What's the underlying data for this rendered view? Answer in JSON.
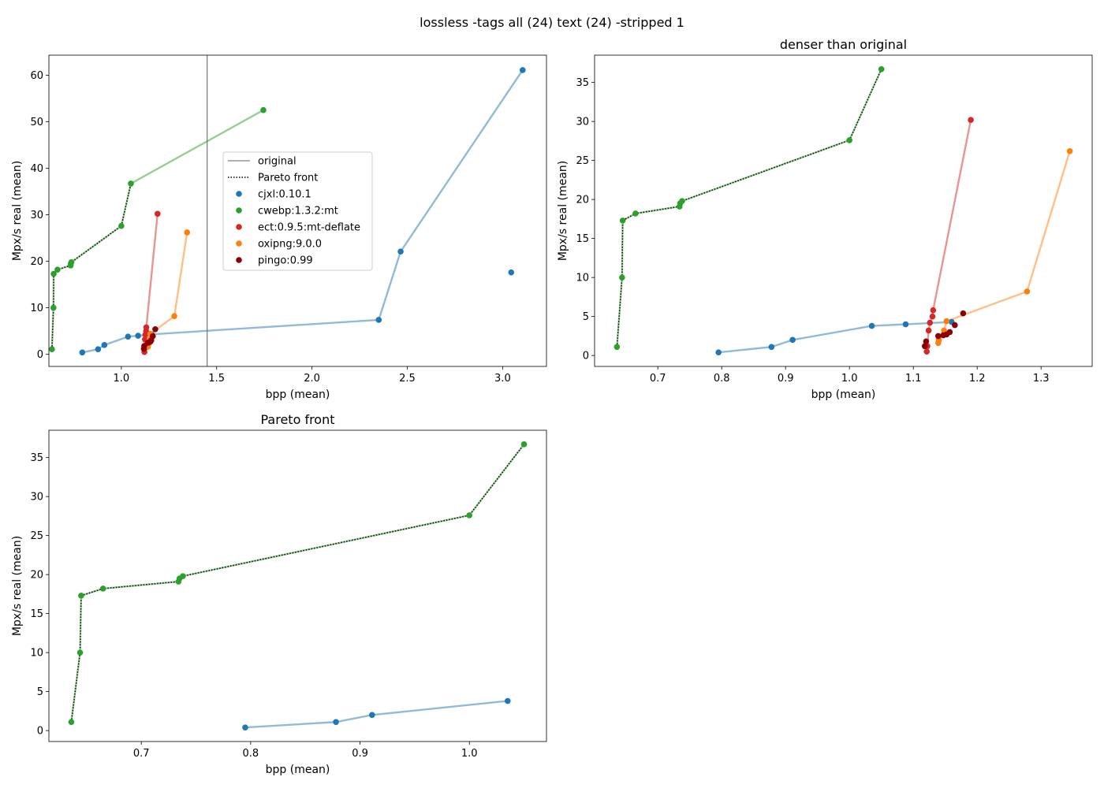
{
  "suptitle": "lossless -tags all (24) text (24) -stripped 1",
  "legend": {
    "original_label": "original",
    "pareto_label": "Pareto front"
  },
  "series_colors": {
    "cjxl:0.10.1": "#1f77b4",
    "cwebp:1.3.2:mt": "#2ca02c",
    "ect:0.9.5:mt-deflate": "#d62728",
    "oxipng:9.0.0": "#ff7f0e",
    "pingo:0.99": "#8b0000"
  },
  "chart_data": [
    {
      "type": "scatter",
      "title": "",
      "xlabel": "bpp (mean)",
      "ylabel": "Mpx/s real (mean)",
      "xlim": [
        0.62,
        3.23
      ],
      "ylim": [
        -2.6,
        64.3
      ],
      "xticks": [
        "1.0",
        "1.5",
        "2.0",
        "2.5",
        "3.0"
      ],
      "yticks": [
        "0",
        "10",
        "20",
        "30",
        "40",
        "50",
        "60"
      ],
      "original_bpp": 1.45,
      "legend_position": "center",
      "series": [
        {
          "name": "cjxl:0.10.1",
          "points": [
            [
              0.795,
              0.4
            ],
            [
              0.878,
              1.1
            ],
            [
              0.911,
              2.0
            ],
            [
              1.035,
              3.8
            ],
            [
              1.088,
              4.0
            ],
            [
              1.16,
              4.3
            ],
            [
              2.35,
              7.4
            ],
            [
              2.465,
              22.1
            ],
            [
              3.105,
              61.1
            ],
            [
              3.045,
              17.6
            ]
          ],
          "line": [
            [
              0.795,
              0.4
            ],
            [
              0.878,
              1.1
            ],
            [
              0.911,
              2.0
            ],
            [
              1.035,
              3.8
            ],
            [
              1.088,
              4.0
            ],
            [
              1.16,
              4.3
            ],
            [
              2.35,
              7.4
            ],
            [
              2.465,
              22.1
            ],
            [
              3.105,
              61.1
            ]
          ]
        },
        {
          "name": "cwebp:1.3.2:mt",
          "points": [
            [
              0.636,
              1.1
            ],
            [
              0.644,
              10.0
            ],
            [
              0.645,
              17.3
            ],
            [
              0.665,
              18.2
            ],
            [
              0.734,
              19.1
            ],
            [
              0.735,
              19.5
            ],
            [
              0.738,
              19.8
            ],
            [
              1.0,
              27.6
            ],
            [
              1.05,
              36.7
            ],
            [
              1.745,
              52.5
            ]
          ],
          "line": [
            [
              0.636,
              1.1
            ],
            [
              0.644,
              10.0
            ],
            [
              0.645,
              17.3
            ],
            [
              0.665,
              18.2
            ],
            [
              0.734,
              19.1
            ],
            [
              0.735,
              19.5
            ],
            [
              0.738,
              19.8
            ],
            [
              1.0,
              27.6
            ],
            [
              1.05,
              36.7
            ],
            [
              1.745,
              52.5
            ]
          ]
        },
        {
          "name": "ect:0.9.5:mt-deflate",
          "points": [
            [
              1.121,
              0.5
            ],
            [
              1.122,
              1.2
            ],
            [
              1.124,
              3.2
            ],
            [
              1.126,
              4.2
            ],
            [
              1.13,
              5.0
            ],
            [
              1.131,
              5.8
            ],
            [
              1.19,
              30.2
            ]
          ],
          "line": [
            [
              1.121,
              0.5
            ],
            [
              1.122,
              1.2
            ],
            [
              1.124,
              3.2
            ],
            [
              1.126,
              4.2
            ],
            [
              1.13,
              5.0
            ],
            [
              1.131,
              5.8
            ],
            [
              1.19,
              30.2
            ]
          ]
        },
        {
          "name": "oxipng:9.0.0",
          "points": [
            [
              1.139,
              1.6
            ],
            [
              1.14,
              2.0
            ],
            [
              1.148,
              3.2
            ],
            [
              1.152,
              4.4
            ],
            [
              1.278,
              8.2
            ],
            [
              1.345,
              26.2
            ]
          ],
          "line": [
            [
              1.139,
              1.6
            ],
            [
              1.14,
              2.0
            ],
            [
              1.148,
              3.2
            ],
            [
              1.152,
              4.4
            ],
            [
              1.278,
              8.2
            ],
            [
              1.345,
              26.2
            ]
          ]
        },
        {
          "name": "pingo:0.99",
          "points": [
            [
              1.118,
              1.2
            ],
            [
              1.12,
              1.8
            ],
            [
              1.139,
              2.5
            ],
            [
              1.147,
              2.6
            ],
            [
              1.152,
              2.7
            ],
            [
              1.157,
              3.0
            ],
            [
              1.165,
              3.9
            ],
            [
              1.178,
              5.4
            ]
          ],
          "line": []
        }
      ],
      "pareto": [
        [
          0.636,
          1.1
        ],
        [
          0.644,
          10.0
        ],
        [
          0.645,
          17.3
        ],
        [
          0.665,
          18.2
        ],
        [
          0.734,
          19.1
        ],
        [
          0.735,
          19.5
        ],
        [
          0.738,
          19.8
        ],
        [
          1.0,
          27.6
        ],
        [
          1.05,
          36.7
        ]
      ]
    },
    {
      "type": "scatter",
      "title": "denser than original",
      "xlabel": "bpp (mean)",
      "ylabel": "Mpx/s real (mean)",
      "xlim": [
        0.601,
        1.38
      ],
      "ylim": [
        -1.4,
        38.5
      ],
      "xticks": [
        "0.7",
        "0.8",
        "0.9",
        "1.0",
        "1.1",
        "1.2",
        "1.3"
      ],
      "yticks": [
        "0",
        "5",
        "10",
        "15",
        "20",
        "25",
        "30",
        "35"
      ],
      "series": [
        {
          "name": "cjxl:0.10.1",
          "points": [
            [
              0.795,
              0.4
            ],
            [
              0.878,
              1.1
            ],
            [
              0.911,
              2.0
            ],
            [
              1.035,
              3.8
            ],
            [
              1.088,
              4.0
            ],
            [
              1.16,
              4.3
            ]
          ],
          "line": [
            [
              0.795,
              0.4
            ],
            [
              0.878,
              1.1
            ],
            [
              0.911,
              2.0
            ],
            [
              1.035,
              3.8
            ],
            [
              1.088,
              4.0
            ],
            [
              1.16,
              4.3
            ]
          ]
        },
        {
          "name": "cwebp:1.3.2:mt",
          "points": [
            [
              0.636,
              1.1
            ],
            [
              0.644,
              10.0
            ],
            [
              0.645,
              17.3
            ],
            [
              0.665,
              18.2
            ],
            [
              0.734,
              19.1
            ],
            [
              0.735,
              19.5
            ],
            [
              0.738,
              19.8
            ],
            [
              1.0,
              27.6
            ],
            [
              1.05,
              36.7
            ]
          ],
          "line": [
            [
              0.636,
              1.1
            ],
            [
              0.644,
              10.0
            ],
            [
              0.645,
              17.3
            ],
            [
              0.665,
              18.2
            ],
            [
              0.734,
              19.1
            ],
            [
              0.735,
              19.5
            ],
            [
              0.738,
              19.8
            ],
            [
              1.0,
              27.6
            ],
            [
              1.05,
              36.7
            ]
          ]
        },
        {
          "name": "ect:0.9.5:mt-deflate",
          "points": [
            [
              1.121,
              0.5
            ],
            [
              1.122,
              1.2
            ],
            [
              1.124,
              3.2
            ],
            [
              1.126,
              4.2
            ],
            [
              1.13,
              5.0
            ],
            [
              1.131,
              5.8
            ],
            [
              1.19,
              30.2
            ]
          ],
          "line": [
            [
              1.121,
              0.5
            ],
            [
              1.122,
              1.2
            ],
            [
              1.124,
              3.2
            ],
            [
              1.126,
              4.2
            ],
            [
              1.13,
              5.0
            ],
            [
              1.131,
              5.8
            ],
            [
              1.19,
              30.2
            ]
          ]
        },
        {
          "name": "oxipng:9.0.0",
          "points": [
            [
              1.139,
              1.6
            ],
            [
              1.14,
              2.0
            ],
            [
              1.148,
              3.2
            ],
            [
              1.152,
              4.4
            ],
            [
              1.278,
              8.2
            ],
            [
              1.345,
              26.2
            ]
          ],
          "line": [
            [
              1.139,
              1.6
            ],
            [
              1.14,
              2.0
            ],
            [
              1.148,
              3.2
            ],
            [
              1.152,
              4.4
            ],
            [
              1.278,
              8.2
            ],
            [
              1.345,
              26.2
            ]
          ]
        },
        {
          "name": "pingo:0.99",
          "points": [
            [
              1.118,
              1.2
            ],
            [
              1.12,
              1.8
            ],
            [
              1.139,
              2.5
            ],
            [
              1.147,
              2.6
            ],
            [
              1.152,
              2.7
            ],
            [
              1.157,
              3.0
            ],
            [
              1.165,
              3.9
            ],
            [
              1.178,
              5.4
            ]
          ],
          "line": []
        }
      ],
      "pareto": [
        [
          0.636,
          1.1
        ],
        [
          0.644,
          10.0
        ],
        [
          0.645,
          17.3
        ],
        [
          0.665,
          18.2
        ],
        [
          0.734,
          19.1
        ],
        [
          0.735,
          19.5
        ],
        [
          0.738,
          19.8
        ],
        [
          1.0,
          27.6
        ],
        [
          1.05,
          36.7
        ]
      ]
    },
    {
      "type": "scatter",
      "title": "Pareto front",
      "xlabel": "bpp (mean)",
      "ylabel": "Mpx/s real (mean)",
      "xlim": [
        0.6155,
        1.0705
      ],
      "ylim": [
        -1.4,
        38.5
      ],
      "xticks": [
        "0.7",
        "0.8",
        "0.9",
        "1.0"
      ],
      "yticks": [
        "0",
        "5",
        "10",
        "15",
        "20",
        "25",
        "30",
        "35"
      ],
      "series": [
        {
          "name": "cjxl:0.10.1",
          "points": [
            [
              0.795,
              0.4
            ],
            [
              0.878,
              1.1
            ],
            [
              0.911,
              2.0
            ],
            [
              1.035,
              3.8
            ]
          ],
          "line": [
            [
              0.795,
              0.4
            ],
            [
              0.878,
              1.1
            ],
            [
              0.911,
              2.0
            ],
            [
              1.035,
              3.8
            ]
          ]
        },
        {
          "name": "cwebp:1.3.2:mt",
          "points": [
            [
              0.636,
              1.1
            ],
            [
              0.644,
              10.0
            ],
            [
              0.645,
              17.3
            ],
            [
              0.665,
              18.2
            ],
            [
              0.734,
              19.1
            ],
            [
              0.735,
              19.5
            ],
            [
              0.738,
              19.8
            ],
            [
              1.0,
              27.6
            ],
            [
              1.05,
              36.7
            ]
          ],
          "line": [
            [
              0.636,
              1.1
            ],
            [
              0.644,
              10.0
            ],
            [
              0.645,
              17.3
            ],
            [
              0.665,
              18.2
            ],
            [
              0.734,
              19.1
            ],
            [
              0.735,
              19.5
            ],
            [
              0.738,
              19.8
            ],
            [
              1.0,
              27.6
            ],
            [
              1.05,
              36.7
            ]
          ]
        }
      ],
      "pareto": [
        [
          0.636,
          1.1
        ],
        [
          0.644,
          10.0
        ],
        [
          0.645,
          17.3
        ],
        [
          0.665,
          18.2
        ],
        [
          0.734,
          19.1
        ],
        [
          0.735,
          19.5
        ],
        [
          0.738,
          19.8
        ],
        [
          1.0,
          27.6
        ],
        [
          1.05,
          36.7
        ]
      ]
    }
  ]
}
